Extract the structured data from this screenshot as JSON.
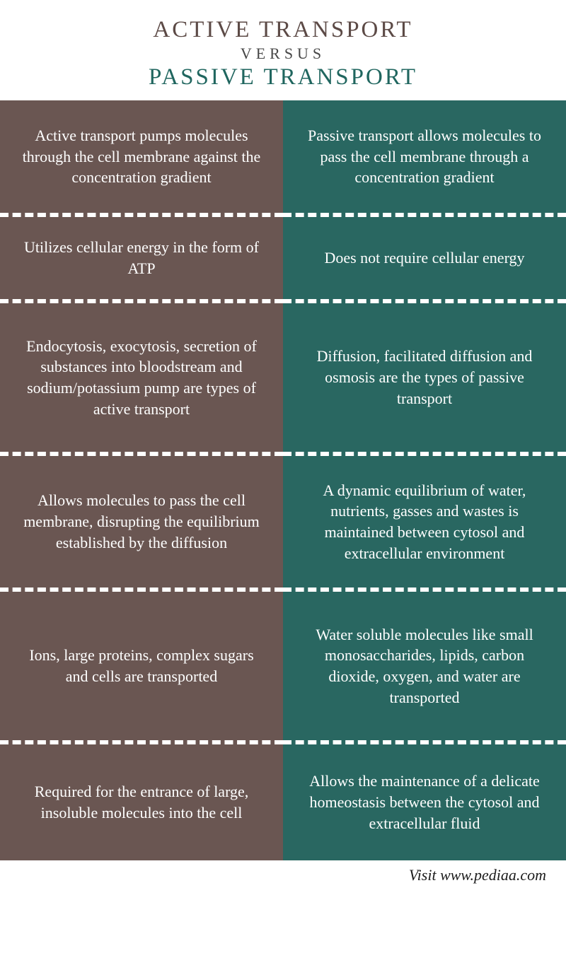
{
  "header": {
    "title_top": "ACTIVE TRANSPORT",
    "title_mid": "VERSUS",
    "title_bottom": "PASSIVE TRANSPORT",
    "title_top_color": "#5c4a46",
    "title_mid_color": "#474747",
    "title_bottom_color": "#20665f"
  },
  "colors": {
    "left_bg": "#6a5652",
    "right_bg": "#296761"
  },
  "rows": [
    {
      "left": "Active transport pumps molecules through the cell membrane against the concentration gradient",
      "right": "Passive transport allows molecules to pass the cell membrane through a concentration gradient"
    },
    {
      "left": "Utilizes cellular energy in the form of ATP",
      "right": "Does not require cellular energy"
    },
    {
      "left": "Endocytosis, exocytosis, secretion of substances into bloodstream and sodium/potassium pump are types of active transport",
      "right": "Diffusion, facilitated diffusion and osmosis are the types of passive transport"
    },
    {
      "left": "Allows molecules to pass the cell membrane, disrupting the equilibrium established by the diffusion",
      "right": "A dynamic equilibrium of water, nutrients, gasses and wastes is maintained between cytosol and extracellular environment"
    },
    {
      "left": "Ions, large proteins, complex sugars and cells are transported",
      "right": "Water soluble molecules like small monosaccharides, lipids, carbon dioxide, oxygen, and water are transported"
    },
    {
      "left": "Required for the entrance of large, insoluble molecules into the cell",
      "right": "Allows the maintenance of a delicate homeostasis between the cytosol and extracellular fluid"
    }
  ],
  "footer": {
    "text": "Visit www.pediaa.com"
  }
}
